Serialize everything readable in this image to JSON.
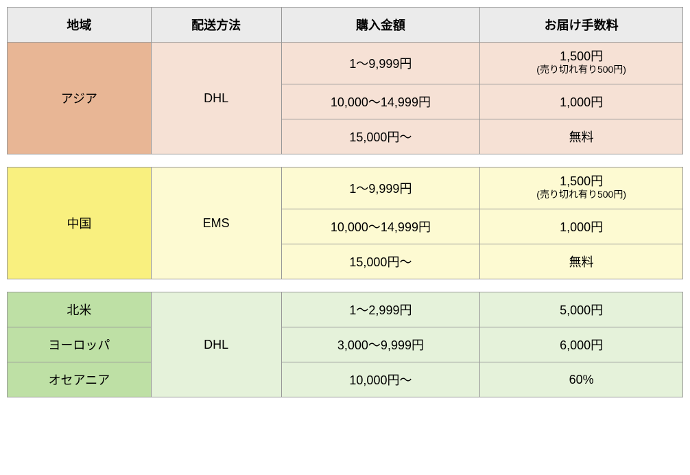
{
  "table": {
    "headers": {
      "region": "地域",
      "method": "配送方法",
      "amount": "購入金額",
      "fee": "お届け手数料"
    },
    "columns": {
      "region_width": 210,
      "method_width": 190,
      "amount_width": 290,
      "fee_width": 296
    },
    "groups": [
      {
        "region_cells": [
          "アジア"
        ],
        "region_rowspan": 3,
        "method": "DHL",
        "region_bg": "#e8b695",
        "row_bg": "#f6e1d5",
        "rows": [
          {
            "amount": "1〜9,999円",
            "fee": "1,500円",
            "fee_sub": "(売り切れ有り500円)"
          },
          {
            "amount": "10,000〜14,999円",
            "fee": "1,000円"
          },
          {
            "amount": "15,000円〜",
            "fee": "無料"
          }
        ]
      },
      {
        "region_cells": [
          "中国"
        ],
        "region_rowspan": 3,
        "method": "EMS",
        "region_bg": "#f9f07f",
        "row_bg": "#fdfad2",
        "rows": [
          {
            "amount": "1〜9,999円",
            "fee": "1,500円",
            "fee_sub": "(売り切れ有り500円)"
          },
          {
            "amount": "10,000〜14,999円",
            "fee": "1,000円"
          },
          {
            "amount": "15,000円〜",
            "fee": "無料"
          }
        ]
      },
      {
        "region_cells": [
          "北米",
          "ヨーロッパ",
          "オセアニア"
        ],
        "region_rowspan": 1,
        "method": "DHL",
        "region_bg": "#bee0a5",
        "row_bg": "#e5f2da",
        "rows": [
          {
            "amount": "1〜2,999円",
            "fee": "5,000円"
          },
          {
            "amount": "3,000〜9,999円",
            "fee": "6,000円"
          },
          {
            "amount": "10,000円〜",
            "fee": "60%"
          }
        ]
      }
    ]
  },
  "style": {
    "border_color": "#999999",
    "header_bg": "#ebebeb",
    "font_size": 18,
    "sub_font_size": 14
  }
}
